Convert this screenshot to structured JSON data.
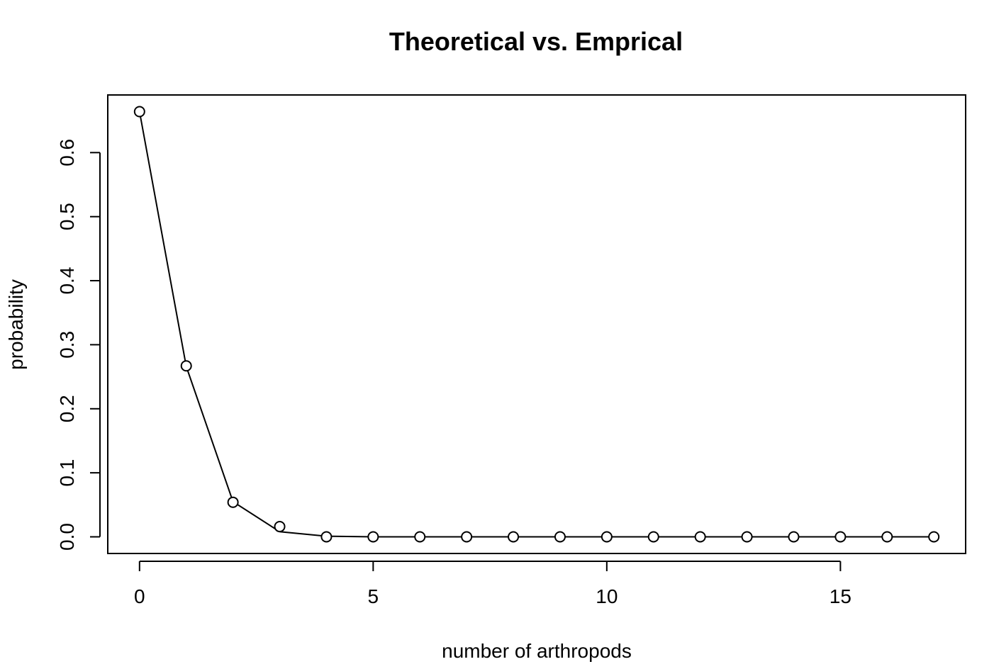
{
  "chart_data": {
    "type": "line",
    "title": "Theoretical vs. Emprical",
    "xlabel": "number of arthropods",
    "ylabel": "probability",
    "xlim": [
      -0.68,
      17.68
    ],
    "ylim": [
      -0.026,
      0.69
    ],
    "x_ticks": [
      0,
      5,
      10,
      15
    ],
    "x_tick_labels": [
      "0",
      "5",
      "10",
      "15"
    ],
    "y_ticks": [
      0.0,
      0.1,
      0.2,
      0.3,
      0.4,
      0.5,
      0.6
    ],
    "y_tick_labels": [
      "0.0",
      "0.1",
      "0.2",
      "0.3",
      "0.4",
      "0.5",
      "0.6"
    ],
    "grid": false,
    "legend": "none",
    "line_color": "#000000",
    "point_color": "#000000",
    "series": [
      {
        "kind": "line",
        "x": [
          0,
          1,
          2,
          3,
          4,
          5,
          6,
          7,
          8,
          9,
          10,
          11,
          12,
          13,
          14,
          15,
          16,
          17
        ],
        "values": [
          0.664,
          0.266,
          0.055,
          0.008,
          0.001,
          0.0,
          0.0,
          0.0,
          0.0,
          0.0,
          0.0,
          0.0,
          0.0,
          0.0,
          0.0,
          0.0,
          0.0,
          0.0
        ]
      },
      {
        "kind": "points",
        "x": [
          0,
          1,
          2,
          3,
          4,
          5,
          6,
          7,
          8,
          9,
          10,
          11,
          12,
          13,
          14,
          15,
          16,
          17
        ],
        "values": [
          0.664,
          0.267,
          0.054,
          0.016,
          0.0,
          0.0,
          0.0,
          0.0,
          0.0,
          0.0,
          0.0,
          0.0,
          0.0,
          0.0,
          0.0,
          0.0,
          0.0,
          0.0
        ]
      }
    ]
  }
}
